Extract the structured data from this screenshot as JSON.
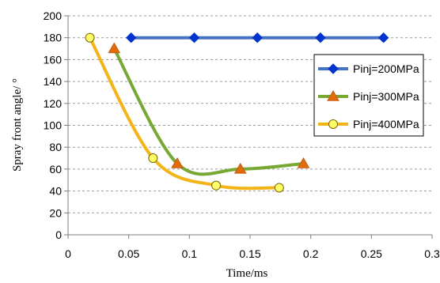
{
  "chart_data": {
    "type": "line",
    "title": "",
    "xlabel": "Time/ms",
    "ylabel": "Spray front angle/ °",
    "xlim": [
      0,
      0.3
    ],
    "ylim": [
      0,
      200
    ],
    "x_ticks": [
      0,
      0.05,
      0.1,
      0.15,
      0.2,
      0.25,
      0.3
    ],
    "x_tick_labels": [
      "0",
      "0.05",
      "0.1",
      "0.15",
      "0.2",
      "0.25",
      "0.3"
    ],
    "y_ticks": [
      0,
      20,
      40,
      60,
      80,
      100,
      120,
      140,
      160,
      180,
      200
    ],
    "y_tick_labels": [
      "0",
      "20",
      "40",
      "60",
      "80",
      "100",
      "120",
      "140",
      "160",
      "180",
      "200"
    ],
    "grid": "horizontal dashed",
    "legend_position": "right",
    "series": [
      {
        "name": "Pinj=200MPa",
        "color": "#4472C4",
        "marker": "diamond",
        "marker_color": "#0033CC",
        "x": [
          0.052,
          0.104,
          0.156,
          0.208,
          0.26
        ],
        "y": [
          180,
          180,
          180,
          180,
          180
        ]
      },
      {
        "name": "Pinj=300MPa",
        "color": "#77A834",
        "marker": "triangle",
        "marker_color": "#E36C0A",
        "x": [
          0.038,
          0.09,
          0.142,
          0.194
        ],
        "y": [
          170,
          65,
          60,
          65
        ]
      },
      {
        "name": "Pinj=400MPa",
        "color": "#F2B417",
        "marker": "circle",
        "marker_color": "#FFFF66",
        "x": [
          0.018,
          0.07,
          0.122,
          0.174
        ],
        "y": [
          180,
          70,
          45,
          43
        ]
      }
    ]
  }
}
